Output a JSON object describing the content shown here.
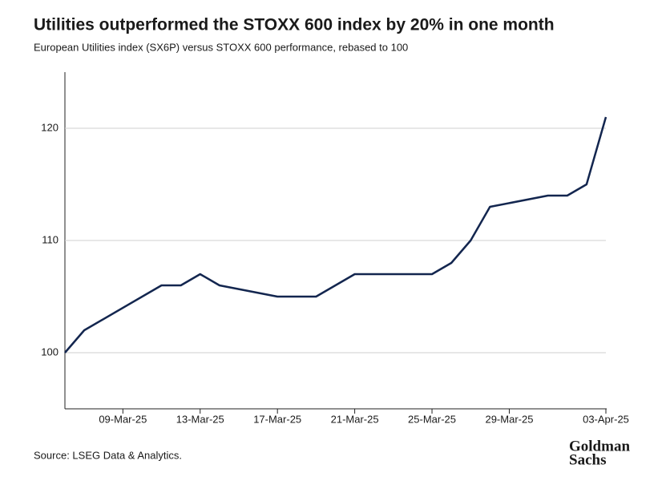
{
  "chart_data": {
    "type": "line",
    "title": "Utilities outperformed the STOXX 600 index by 20% in one month",
    "subtitle": "European Utilities index (SX6P) versus STOXX 600 performance, rebased to 100",
    "source": "Source: LSEG Data & Analytics.",
    "logo": [
      "Goldman",
      "Sachs"
    ],
    "x": [
      "2025-03-06",
      "2025-03-07",
      "2025-03-11",
      "2025-03-12",
      "2025-03-13",
      "2025-03-14",
      "2025-03-17",
      "2025-03-19",
      "2025-03-21",
      "2025-03-25",
      "2025-03-26",
      "2025-03-27",
      "2025-03-28",
      "2025-03-31",
      "2025-04-01",
      "2025-04-02",
      "2025-04-03"
    ],
    "series": [
      {
        "name": "SX6P vs STOXX 600",
        "color": "#13264f",
        "values": [
          100,
          102,
          106,
          106,
          107,
          106,
          105,
          105,
          107,
          107,
          108,
          110,
          113,
          114,
          114,
          115,
          121
        ]
      }
    ],
    "xlim": [
      "2025-03-06",
      "2025-04-03"
    ],
    "xticks": [
      {
        "value": "2025-03-09",
        "label": "09-Mar-25"
      },
      {
        "value": "2025-03-13",
        "label": "13-Mar-25"
      },
      {
        "value": "2025-03-17",
        "label": "17-Mar-25"
      },
      {
        "value": "2025-03-21",
        "label": "21-Mar-25"
      },
      {
        "value": "2025-03-25",
        "label": "25-Mar-25"
      },
      {
        "value": "2025-03-29",
        "label": "29-Mar-25"
      },
      {
        "value": "2025-04-03",
        "label": "03-Apr-25"
      }
    ],
    "ylim": [
      95,
      125
    ],
    "yticks": [
      100,
      110,
      120
    ],
    "grid": true
  }
}
